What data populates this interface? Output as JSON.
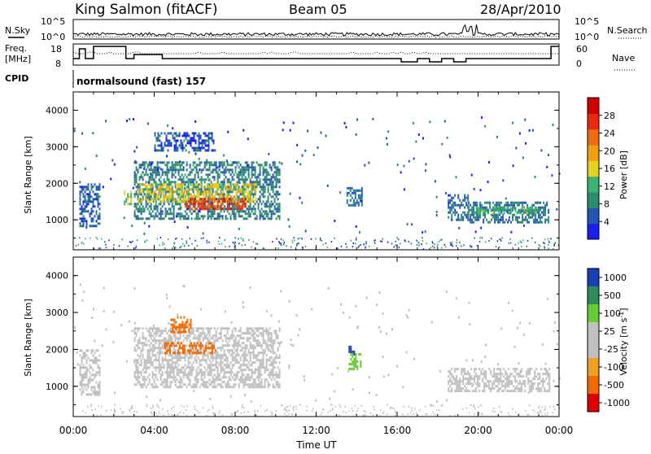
{
  "header": {
    "station": "King Salmon (fitACF)",
    "beam": "Beam 05",
    "date": "28/Apr/2010"
  },
  "noise_panel": {
    "left_label": "N.Sky",
    "right_label": "N.Search",
    "ticks_left": [
      "10^5",
      "10^0"
    ],
    "ticks_right": [
      "10^5",
      "10^0"
    ]
  },
  "freq_panel": {
    "left_label_1": "Freq.",
    "left_label_2": "[MHz]",
    "right_label": "Nave",
    "ticks_left": [
      "18",
      "8"
    ],
    "ticks_right": [
      "60",
      "0"
    ]
  },
  "cpid": {
    "label": "CPID",
    "value": "normalsound (fast) 157"
  },
  "colors": {
    "power": [
      "#1d1df0",
      "#2457b5",
      "#2d8c6b",
      "#3cb371",
      "#e8d020",
      "#f0a010",
      "#f06a10",
      "#e82a10",
      "#d00000"
    ],
    "velocity": [
      "#e00000",
      "#f06a00",
      "#f0a020",
      "#c0c0c0",
      "#c0c0c0",
      "#66cc33",
      "#2e8b57",
      "#1d3fb5"
    ]
  },
  "chart_data": [
    {
      "type": "heatmap",
      "panel": "power",
      "xlabel": "Time UT",
      "ylabel": "Slant Range [km]",
      "x_ticks": [
        "00:00",
        "04:00",
        "08:00",
        "12:00",
        "16:00",
        "20:00",
        "00:00"
      ],
      "xlim_hours": [
        0,
        24
      ],
      "y_ticks": [
        "1000",
        "2000",
        "3000",
        "4000"
      ],
      "ylim": [
        180,
        4500
      ],
      "colorbar_label": "Power [dB]",
      "colorbar_ticks": [
        "4",
        "8",
        "12",
        "16",
        "20",
        "24",
        "28"
      ],
      "colorbar_range": [
        0,
        32
      ],
      "echo_regions": [
        {
          "x": [
            0.3,
            1.3
          ],
          "y": [
            800,
            2000
          ],
          "value": 6
        },
        {
          "x": [
            2.5,
            2.9
          ],
          "y": [
            1400,
            1800
          ],
          "value": 14
        },
        {
          "x": [
            3.0,
            10.2
          ],
          "y": [
            1000,
            2600
          ],
          "value": 8
        },
        {
          "x": [
            3.2,
            9.0
          ],
          "y": [
            1500,
            2000
          ],
          "value": 16
        },
        {
          "x": [
            5.5,
            8.5
          ],
          "y": [
            1300,
            1600
          ],
          "value": 26
        },
        {
          "x": [
            4.0,
            7.0
          ],
          "y": [
            2900,
            3400
          ],
          "value": 5
        },
        {
          "x": [
            13.5,
            14.3
          ],
          "y": [
            1400,
            1900
          ],
          "value": 7
        },
        {
          "x": [
            18.5,
            19.5
          ],
          "y": [
            1000,
            1700
          ],
          "value": 6
        },
        {
          "x": [
            19.5,
            23.5
          ],
          "y": [
            900,
            1500
          ],
          "value": 8
        },
        {
          "x": [
            19.8,
            23.0
          ],
          "y": [
            1150,
            1350
          ],
          "value": 12
        }
      ]
    },
    {
      "type": "heatmap",
      "panel": "velocity",
      "xlabel": "Time UT",
      "ylabel": "Slant Range [km]",
      "x_ticks": [
        "00:00",
        "04:00",
        "08:00",
        "12:00",
        "16:00",
        "20:00",
        "00:00"
      ],
      "xlim_hours": [
        0,
        24
      ],
      "y_ticks": [
        "1000",
        "2000",
        "3000",
        "4000"
      ],
      "ylim": [
        180,
        4500
      ],
      "colorbar_label": "Velocity [m s^-1]",
      "colorbar_ticks": [
        "1000",
        "500",
        "100",
        "25",
        "-25",
        "-100",
        "-500",
        "-1000"
      ],
      "echo_regions": [
        {
          "x": [
            0.3,
            1.3
          ],
          "y": [
            800,
            2000
          ],
          "value": 0
        },
        {
          "x": [
            3.0,
            10.2
          ],
          "y": [
            1000,
            2600
          ],
          "value": 0
        },
        {
          "x": [
            4.5,
            7.0
          ],
          "y": [
            1900,
            2200
          ],
          "value": -200
        },
        {
          "x": [
            4.8,
            5.8
          ],
          "y": [
            2500,
            2900
          ],
          "value": -200
        },
        {
          "x": [
            13.6,
            14.2
          ],
          "y": [
            1500,
            1900
          ],
          "value": 200
        },
        {
          "x": [
            13.6,
            13.9
          ],
          "y": [
            1900,
            2100
          ],
          "value": 800
        },
        {
          "x": [
            18.5,
            23.5
          ],
          "y": [
            900,
            1500
          ],
          "value": 0
        }
      ]
    }
  ]
}
